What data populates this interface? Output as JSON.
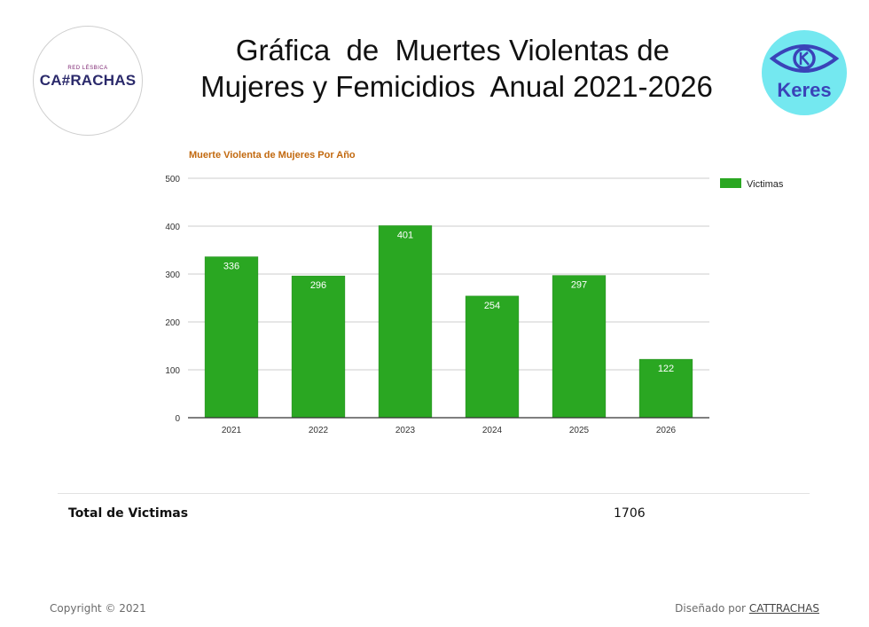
{
  "header": {
    "title": "Gráfica  de  Muertes Violentas de \nMujeres y Femicidios  Anual 2021-2026",
    "logo_left_small": "RED LÉSBICA",
    "logo_left_main": "CA#RACHAS",
    "logo_right_text": "Keres"
  },
  "chart_data": {
    "type": "bar",
    "title": "Muerte Violenta de Mujeres Por Año",
    "categories": [
      "2021",
      "2022",
      "2023",
      "2024",
      "2025",
      "2026"
    ],
    "series": [
      {
        "name": "Victimas",
        "values": [
          336,
          296,
          401,
          254,
          297,
          122
        ]
      }
    ],
    "ylim": [
      0,
      500
    ],
    "yticks": [
      0,
      100,
      200,
      300,
      400,
      500
    ],
    "xlabel": "",
    "ylabel": "",
    "grid": true,
    "legend": "right",
    "bar_color": "#2aa722",
    "title_color": "#c2690f"
  },
  "summary": {
    "total_label": "Total de Victimas",
    "total_value": "1706"
  },
  "footer": {
    "copyright": "Copyright © 2021",
    "designed_prefix": "Diseñado por ",
    "designed_link": "CATTRACHAS"
  }
}
